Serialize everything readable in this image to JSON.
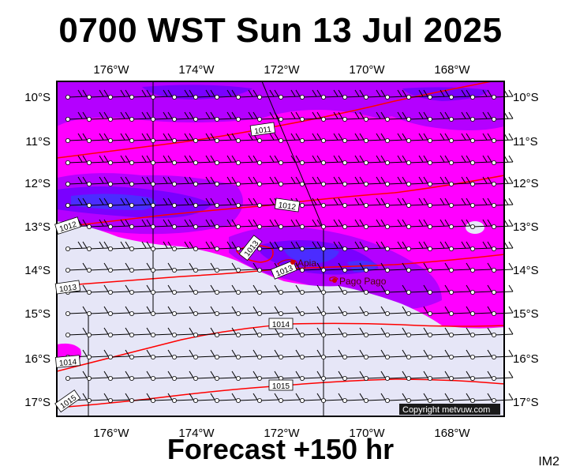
{
  "title": "0700 WST Sun 13 Jul 2025",
  "subtitle": "Forecast +150 hr",
  "corner_label": "IM2",
  "copyright": "Copyright metvuw.com",
  "longitude_labels": [
    "176°W",
    "174°W",
    "172°W",
    "170°W",
    "168°W"
  ],
  "latitude_labels": [
    "10°S",
    "11°S",
    "12°S",
    "13°S",
    "14°S",
    "15°S",
    "16°S",
    "17°S"
  ],
  "isobar_labels": [
    "1011",
    "1012",
    "1012",
    "1013",
    "1013",
    "1013",
    "1014",
    "1014",
    "1015",
    "1015"
  ],
  "places": [
    {
      "name": "Apia",
      "icon": "city-marker-icon"
    },
    {
      "name": "Pago Pago",
      "icon": "city-marker-icon"
    }
  ],
  "colors": {
    "magenta": "#ff00ff",
    "violet": "#b400ff",
    "purple": "#7a00ff",
    "blue": "#4b2cff",
    "dry": "#e6e6f7",
    "isobar": "#ff0000"
  }
}
